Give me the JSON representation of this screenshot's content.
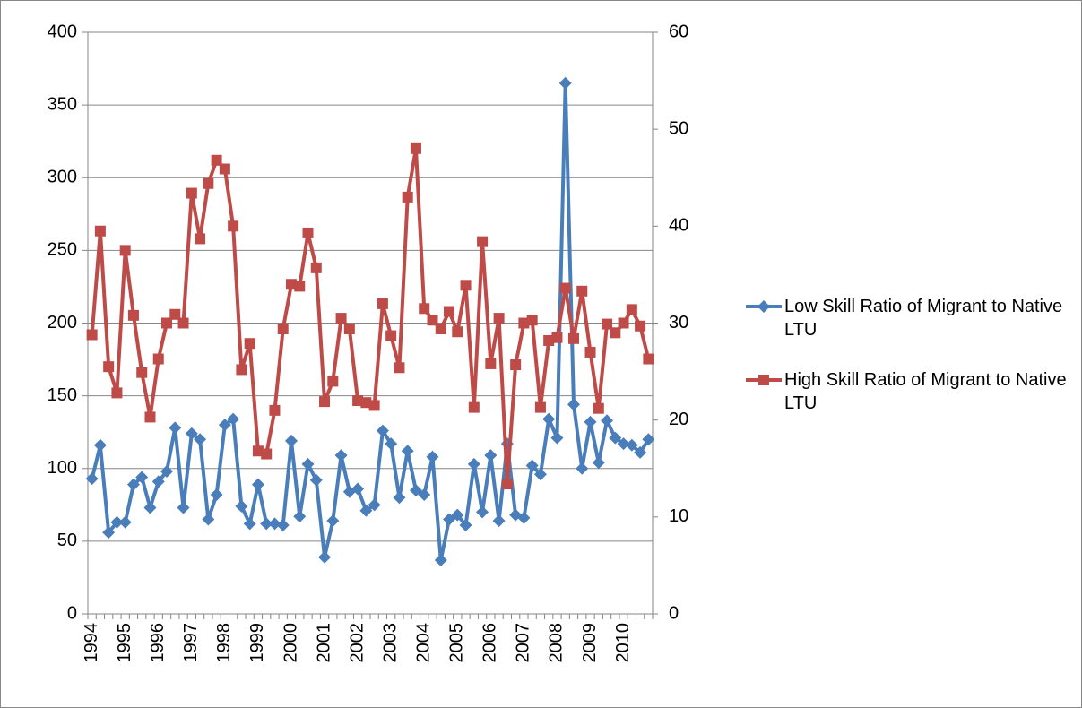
{
  "chart_data": {
    "type": "line",
    "categories": [
      "1994",
      null,
      null,
      null,
      "1995",
      null,
      null,
      null,
      "1996",
      null,
      null,
      null,
      "1997",
      null,
      null,
      null,
      "1998",
      null,
      null,
      null,
      "1999",
      null,
      null,
      null,
      "2000",
      null,
      null,
      null,
      "2001",
      null,
      null,
      null,
      "2002",
      null,
      null,
      null,
      "2003",
      null,
      null,
      null,
      "2004",
      null,
      null,
      null,
      "2005",
      null,
      null,
      null,
      "2006",
      null,
      null,
      null,
      "2007",
      null,
      null,
      null,
      "2008",
      null,
      null,
      null,
      "2009",
      null,
      null,
      null,
      "2010",
      null,
      null,
      null
    ],
    "series": [
      {
        "name": "Low Skill Ratio of Migrant to Native LTU",
        "color": "#4a7ebb",
        "marker": "diamond",
        "values": [
          93,
          116,
          56,
          63,
          63,
          89,
          94,
          73,
          91,
          98,
          128,
          73,
          124,
          120,
          65,
          82,
          130,
          134,
          74,
          62,
          89,
          62,
          62,
          61,
          119,
          67,
          103,
          92,
          39,
          64,
          109,
          84,
          86,
          71,
          75,
          126,
          117,
          80,
          112,
          85,
          82,
          108,
          37,
          65,
          68,
          61,
          103,
          70,
          109,
          64,
          117,
          68,
          66,
          102,
          96,
          134,
          121,
          365,
          144,
          100,
          132,
          104,
          133,
          121,
          117,
          116,
          111,
          120
        ]
      },
      {
        "name": "High Skill Ratio of Migrant to Native LTU",
        "color": "#be4b48",
        "marker": "square",
        "axis": "y2",
        "values": [
          28.8,
          39.5,
          25.5,
          22.8,
          37.5,
          30.8,
          24.9,
          20.3,
          26.3,
          30,
          30.9,
          30,
          43.4,
          38.7,
          44.4,
          46.8,
          45.9,
          40,
          25.2,
          27.9,
          16.8,
          16.5,
          21,
          29.4,
          34,
          33.8,
          39.3,
          35.7,
          21.9,
          24,
          30.5,
          29.4,
          22,
          21.8,
          21.5,
          32,
          28.7,
          25.4,
          43,
          48,
          31.5,
          30.3,
          29.4,
          31.2,
          29.1,
          33.9,
          21.3,
          38.4,
          25.8,
          30.5,
          13.4,
          25.7,
          30,
          30.3,
          21.3,
          28.2,
          28.5,
          33.6,
          28.4,
          33.3,
          27,
          21.2,
          29.9,
          29,
          30,
          31.4,
          29.7,
          26.3
        ]
      }
    ],
    "ylim": [
      0,
      400
    ],
    "yticks": [
      0,
      50,
      100,
      150,
      200,
      250,
      300,
      350,
      400
    ],
    "y2lim": [
      0,
      60
    ],
    "y2ticks": [
      0,
      10,
      20,
      30,
      40,
      50,
      60
    ],
    "grid": true,
    "legend": "right"
  }
}
